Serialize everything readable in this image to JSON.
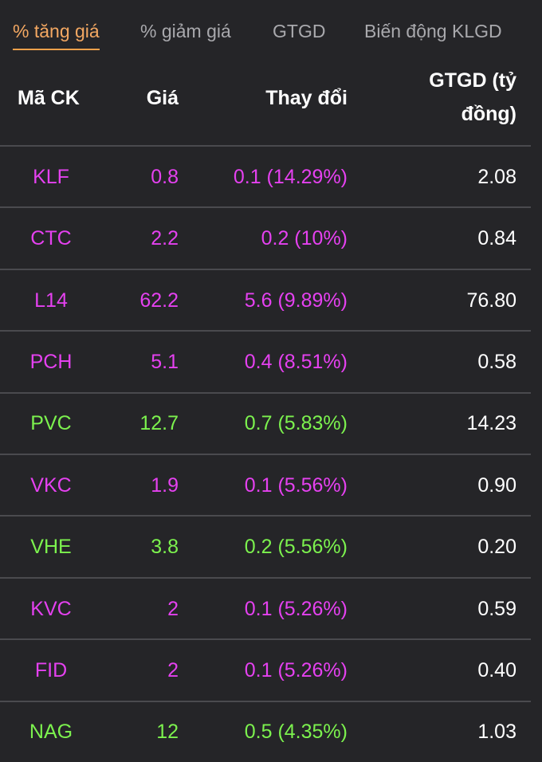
{
  "tabs": {
    "items": [
      "% tăng giá",
      "% giảm giá",
      "GTGD",
      "Biến động KLGD"
    ],
    "active": 0
  },
  "table": {
    "header": [
      "Mã CK",
      "Giá",
      "Thay đổi",
      "GTGD (tỷ đồng)"
    ],
    "rows": [
      {
        "color": "#e541f0",
        "cells": [
          "KLF",
          "0.8",
          "0.1 (14.29%)",
          "2.08"
        ]
      },
      {
        "color": "#e541f0",
        "cells": [
          "CTC",
          "2.2",
          "0.2 (10%)",
          "0.84"
        ]
      },
      {
        "color": "#e541f0",
        "cells": [
          "L14",
          "62.2",
          "5.6 (9.89%)",
          "76.80"
        ]
      },
      {
        "color": "#e541f0",
        "cells": [
          "PCH",
          "5.1",
          "0.4 (8.51%)",
          "0.58"
        ]
      },
      {
        "color": "#7cf24e",
        "cells": [
          "PVC",
          "12.7",
          "0.7 (5.83%)",
          "14.23"
        ]
      },
      {
        "color": "#e541f0",
        "cells": [
          "VKC",
          "1.9",
          "0.1 (5.56%)",
          "0.90"
        ]
      },
      {
        "color": "#7cf24e",
        "cells": [
          "VHE",
          "3.8",
          "0.2 (5.56%)",
          "0.20"
        ]
      },
      {
        "color": "#e541f0",
        "cells": [
          "KVC",
          "2",
          "0.1 (5.26%)",
          "0.59"
        ]
      },
      {
        "color": "#e541f0",
        "cells": [
          "FID",
          "2",
          "0.1 (5.26%)",
          "0.40"
        ]
      },
      {
        "color": "#7cf24e",
        "cells": [
          "NAG",
          "12",
          "0.5 (4.35%)",
          "1.03"
        ]
      }
    ]
  }
}
